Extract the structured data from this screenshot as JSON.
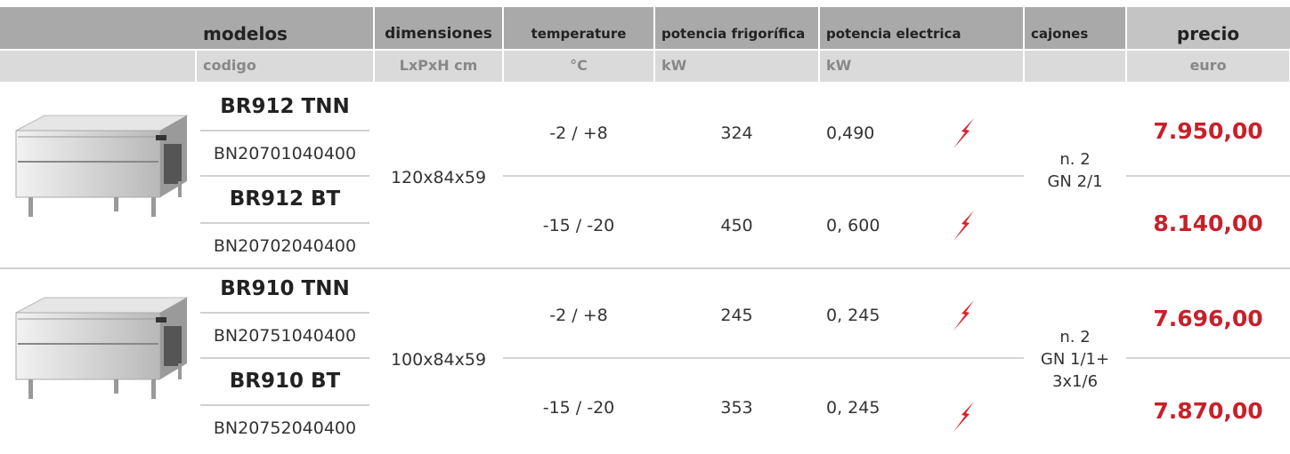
{
  "header": {
    "columns": [
      {
        "title": "modelos",
        "unit": "codigo"
      },
      {
        "title": "dimensiones",
        "unit": "LxPxH cm"
      },
      {
        "title": "temperature",
        "unit": "°C"
      },
      {
        "title": "potencia frigorífica",
        "unit": "kW"
      },
      {
        "title": "potencia electrica",
        "unit": "kW"
      },
      {
        "title": "cajones"
      },
      {
        "title": "precio",
        "unit": "euro"
      }
    ]
  },
  "groups": [
    {
      "dimensions": "120x84x59",
      "drawers": [
        "n. 2",
        "GN 2/1"
      ],
      "products": [
        {
          "model": "BR912 TNN",
          "code": "BN20701040400",
          "temperature": "-2 / +8",
          "cooling_power": "324",
          "electric_power": "0,490",
          "price": "7.950,00"
        },
        {
          "model": "BR912 BT",
          "code": "BN20702040400",
          "temperature": "-15 / -20",
          "cooling_power": "450",
          "electric_power": "0, 600",
          "price": "8.140,00"
        }
      ]
    },
    {
      "dimensions": "100x84x59",
      "drawers": [
        "n. 2",
        "GN 1/1+",
        "3x1/6"
      ],
      "products": [
        {
          "model": "BR910 TNN",
          "code": "BN20751040400",
          "temperature": "-2 / +8",
          "cooling_power": "245",
          "electric_power": "0, 245",
          "price": "7.696,00"
        },
        {
          "model": "BR910 BT",
          "code": "BN20752040400",
          "temperature": "-15 / -20",
          "cooling_power": "353",
          "electric_power": "0, 245",
          "price": "7.870,00"
        }
      ]
    }
  ]
}
